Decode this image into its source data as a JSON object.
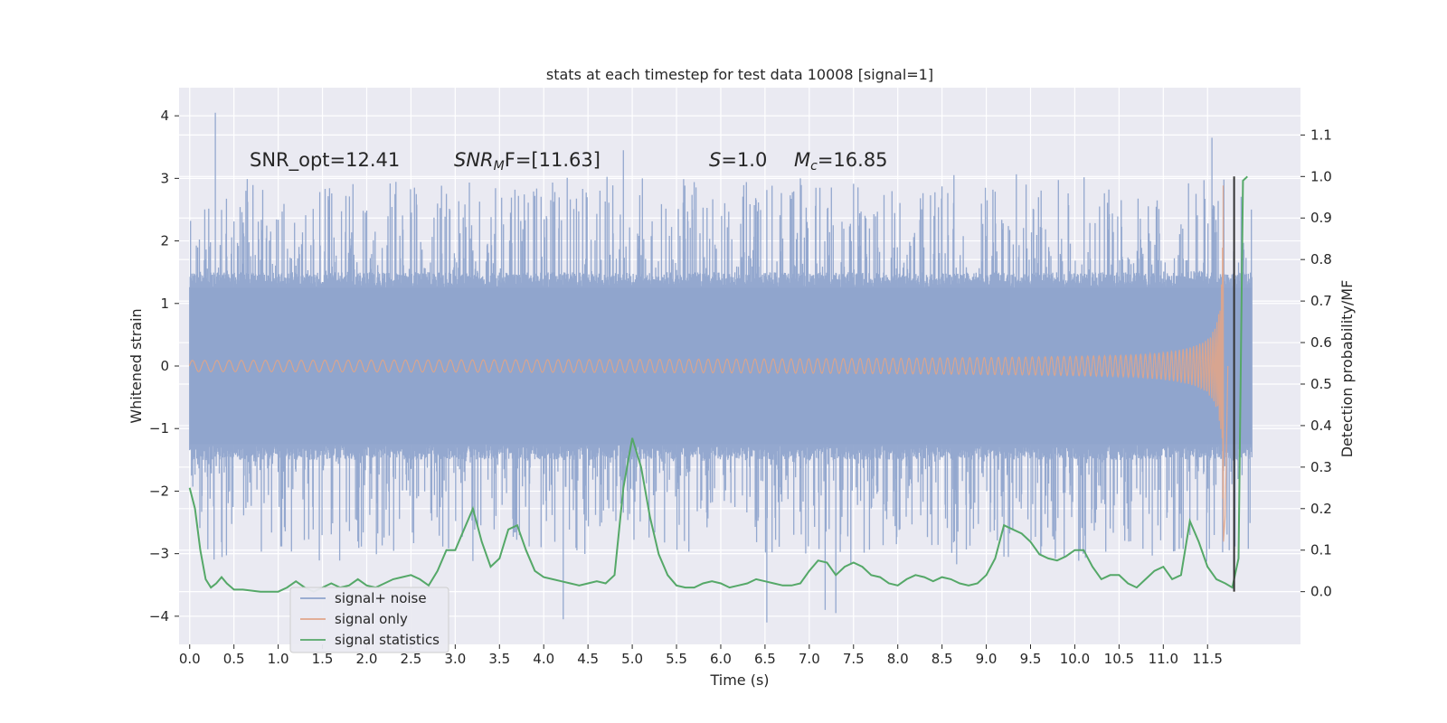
{
  "chart_data": {
    "type": "line",
    "title": "stats at each timestep for test data 10008 [signal=1]",
    "xlabel": "Time (s)",
    "ylabel": "Whitened strain",
    "y2label": "Detection probability/MF",
    "xlim": [
      -0.12,
      12.55
    ],
    "ylim": [
      -4.45,
      4.45
    ],
    "y2lim": [
      -0.127,
      1.214
    ],
    "x_ticks": [
      0.0,
      0.5,
      1.0,
      1.5,
      2.0,
      2.5,
      3.0,
      3.5,
      4.0,
      4.5,
      5.0,
      5.5,
      6.0,
      6.5,
      7.0,
      7.5,
      8.0,
      8.5,
      9.0,
      9.5,
      10.0,
      10.5,
      11.0,
      11.5
    ],
    "x_tick_labels": [
      "0.0",
      "0.5",
      "1.0",
      "1.5",
      "2.0",
      "2.5",
      "3.0",
      "3.5",
      "4.0",
      "4.5",
      "5.0",
      "5.5",
      "6.0",
      "6.5",
      "7.0",
      "7.5",
      "8.0",
      "8.5",
      "9.0",
      "9.5",
      "10.0",
      "10.5",
      "11.0",
      "11.5"
    ],
    "y_ticks": [
      -4,
      -3,
      -2,
      -1,
      0,
      1,
      2,
      3,
      4
    ],
    "y_tick_labels": [
      "−4",
      "−3",
      "−2",
      "−1",
      "0",
      "1",
      "2",
      "3",
      "4"
    ],
    "y2_ticks": [
      0.0,
      0.1,
      0.2,
      0.3,
      0.4,
      0.5,
      0.6,
      0.7,
      0.8,
      0.9,
      1.0,
      1.1
    ],
    "y2_tick_labels": [
      "0.0",
      "0.1",
      "0.2",
      "0.3",
      "0.4",
      "0.5",
      "0.6",
      "0.7",
      "0.8",
      "0.9",
      "1.0",
      "1.1"
    ],
    "grid": true,
    "legend_position": "lower-left",
    "annotations": {
      "snr_opt": "SNR_opt=12.41",
      "snr_mf_main": "SNR",
      "snr_mf_sub": "M",
      "snr_mf_rest": "F=[11.63]",
      "s_var": "S",
      "s_val": "=1.0",
      "mc_var": "M",
      "mc_sub": "c",
      "mc_val": "=16.85"
    },
    "series": [
      {
        "name": "signal+ noise",
        "axis": "left",
        "color": "#8fa4cc",
        "t_start": 0.0,
        "t_end": 12.0,
        "core_amplitude": 1.25,
        "spike_extremes": [
          {
            "x": 0.29,
            "y": 4.05
          },
          {
            "x": 4.9,
            "y": 3.45
          },
          {
            "x": 11.55,
            "y": 3.65
          },
          {
            "x": 6.52,
            "y": -4.1
          },
          {
            "x": 4.22,
            "y": -4.05
          },
          {
            "x": 7.18,
            "y": -3.9
          },
          {
            "x": 7.3,
            "y": -3.95
          }
        ]
      },
      {
        "name": "signal only",
        "axis": "left",
        "color": "#e0a58a",
        "t_start": 0.0,
        "t_merger": 11.68,
        "peak_amplitude": 2.9
      },
      {
        "name": "signal statistics",
        "axis": "right",
        "color": "#55a868",
        "x": [
          0.0,
          0.06,
          0.12,
          0.18,
          0.24,
          0.3,
          0.36,
          0.42,
          0.5,
          0.6,
          0.8,
          1.0,
          1.1,
          1.2,
          1.3,
          1.4,
          1.5,
          1.6,
          1.7,
          1.8,
          1.9,
          2.0,
          2.1,
          2.2,
          2.3,
          2.4,
          2.5,
          2.6,
          2.7,
          2.8,
          2.9,
          3.0,
          3.1,
          3.2,
          3.3,
          3.4,
          3.5,
          3.6,
          3.7,
          3.8,
          3.9,
          4.0,
          4.1,
          4.2,
          4.3,
          4.4,
          4.5,
          4.6,
          4.7,
          4.8,
          4.9,
          5.0,
          5.1,
          5.2,
          5.3,
          5.4,
          5.5,
          5.6,
          5.7,
          5.8,
          5.9,
          6.0,
          6.1,
          6.2,
          6.3,
          6.4,
          6.5,
          6.6,
          6.7,
          6.8,
          6.9,
          7.0,
          7.1,
          7.2,
          7.3,
          7.4,
          7.5,
          7.6,
          7.7,
          7.8,
          7.9,
          8.0,
          8.1,
          8.2,
          8.3,
          8.4,
          8.5,
          8.6,
          8.7,
          8.8,
          8.9,
          9.0,
          9.1,
          9.2,
          9.3,
          9.4,
          9.5,
          9.6,
          9.7,
          9.8,
          9.9,
          10.0,
          10.1,
          10.2,
          10.3,
          10.4,
          10.5,
          10.6,
          10.7,
          10.8,
          10.9,
          11.0,
          11.1,
          11.2,
          11.3,
          11.4,
          11.5,
          11.6,
          11.7,
          11.78,
          11.85,
          11.9,
          11.95
        ],
        "values": [
          0.25,
          0.2,
          0.1,
          0.03,
          0.01,
          0.02,
          0.035,
          0.02,
          0.005,
          0.005,
          0.0,
          0.0,
          0.01,
          0.025,
          0.01,
          0.0,
          0.01,
          0.02,
          0.01,
          0.015,
          0.03,
          0.015,
          0.01,
          0.02,
          0.03,
          0.035,
          0.04,
          0.03,
          0.015,
          0.05,
          0.1,
          0.1,
          0.15,
          0.2,
          0.12,
          0.06,
          0.08,
          0.15,
          0.16,
          0.1,
          0.05,
          0.035,
          0.03,
          0.025,
          0.02,
          0.015,
          0.02,
          0.025,
          0.02,
          0.04,
          0.25,
          0.37,
          0.3,
          0.18,
          0.09,
          0.04,
          0.015,
          0.01,
          0.01,
          0.02,
          0.025,
          0.02,
          0.01,
          0.015,
          0.02,
          0.03,
          0.025,
          0.02,
          0.015,
          0.015,
          0.02,
          0.05,
          0.075,
          0.07,
          0.04,
          0.06,
          0.07,
          0.06,
          0.04,
          0.035,
          0.02,
          0.015,
          0.03,
          0.04,
          0.035,
          0.025,
          0.035,
          0.03,
          0.02,
          0.015,
          0.02,
          0.04,
          0.08,
          0.16,
          0.15,
          0.14,
          0.12,
          0.09,
          0.08,
          0.075,
          0.085,
          0.1,
          0.1,
          0.06,
          0.03,
          0.04,
          0.04,
          0.02,
          0.01,
          0.03,
          0.05,
          0.06,
          0.03,
          0.04,
          0.17,
          0.12,
          0.06,
          0.03,
          0.02,
          0.01,
          0.08,
          0.99,
          1.0
        ]
      }
    ],
    "vertical_marker": {
      "x": 11.8,
      "y_bottom": 0.0,
      "y_top": 1.0,
      "color": "#333333"
    }
  }
}
